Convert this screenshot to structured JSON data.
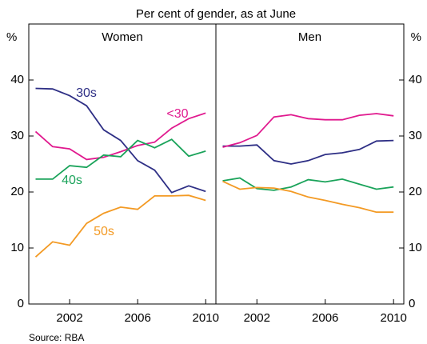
{
  "subtitle": "Per cent of gender, as at June",
  "source": "Source: RBA",
  "chart_data": [
    {
      "type": "line",
      "title": "Women",
      "ylabel": "%",
      "xlim": [
        1999.6,
        2010.6
      ],
      "xticks": [
        2002,
        2006,
        2010
      ],
      "ylim": [
        0,
        50
      ],
      "yticks": [
        0,
        10,
        20,
        30,
        40
      ],
      "x": [
        2000,
        2001,
        2002,
        2003,
        2004,
        2005,
        2006,
        2007,
        2008,
        2009,
        2010
      ],
      "series": [
        {
          "name": "30s",
          "color": "#2e2f85",
          "values": [
            38.5,
            38.4,
            37.2,
            35.4,
            31.1,
            29.2,
            25.6,
            23.9,
            19.9,
            21.1,
            20.1
          ]
        },
        {
          "name": "<30",
          "color": "#e0198e",
          "values": [
            30.8,
            28.1,
            27.7,
            25.8,
            26.2,
            27.2,
            28.3,
            28.9,
            31.4,
            33.1,
            34.1
          ]
        },
        {
          "name": "40s",
          "color": "#1aa35a",
          "values": [
            22.3,
            22.3,
            24.7,
            24.4,
            26.6,
            26.3,
            29.2,
            27.9,
            29.4,
            26.4,
            27.3
          ]
        },
        {
          "name": "50s",
          "color": "#f39a24",
          "values": [
            8.4,
            11.1,
            10.5,
            14.4,
            16.2,
            17.3,
            16.9,
            19.3,
            19.3,
            19.4,
            18.5
          ]
        }
      ]
    },
    {
      "type": "line",
      "title": "Men",
      "ylabel": "%",
      "xlim": [
        1999.6,
        2010.6
      ],
      "xticks": [
        2002,
        2006,
        2010
      ],
      "ylim": [
        0,
        50
      ],
      "yticks": [
        0,
        10,
        20,
        30,
        40
      ],
      "x": [
        2000,
        2001,
        2002,
        2003,
        2004,
        2005,
        2006,
        2007,
        2008,
        2009,
        2010
      ],
      "series": [
        {
          "color": "#2e2f85",
          "values": [
            28.2,
            28.2,
            28.4,
            25.6,
            25.0,
            25.6,
            26.7,
            27.0,
            27.6,
            29.1,
            29.2
          ]
        },
        {
          "color": "#e0198e",
          "values": [
            28.0,
            28.8,
            30.1,
            33.4,
            33.8,
            33.1,
            32.9,
            32.9,
            33.7,
            34.0,
            33.6
          ]
        },
        {
          "color": "#1aa35a",
          "values": [
            22.0,
            22.5,
            20.6,
            20.3,
            20.9,
            22.2,
            21.8,
            22.3,
            21.4,
            20.5,
            20.9
          ]
        },
        {
          "color": "#f39a24",
          "values": [
            21.9,
            20.5,
            20.8,
            20.7,
            20.1,
            19.1,
            18.5,
            17.8,
            17.2,
            16.4,
            16.4
          ]
        }
      ]
    }
  ]
}
